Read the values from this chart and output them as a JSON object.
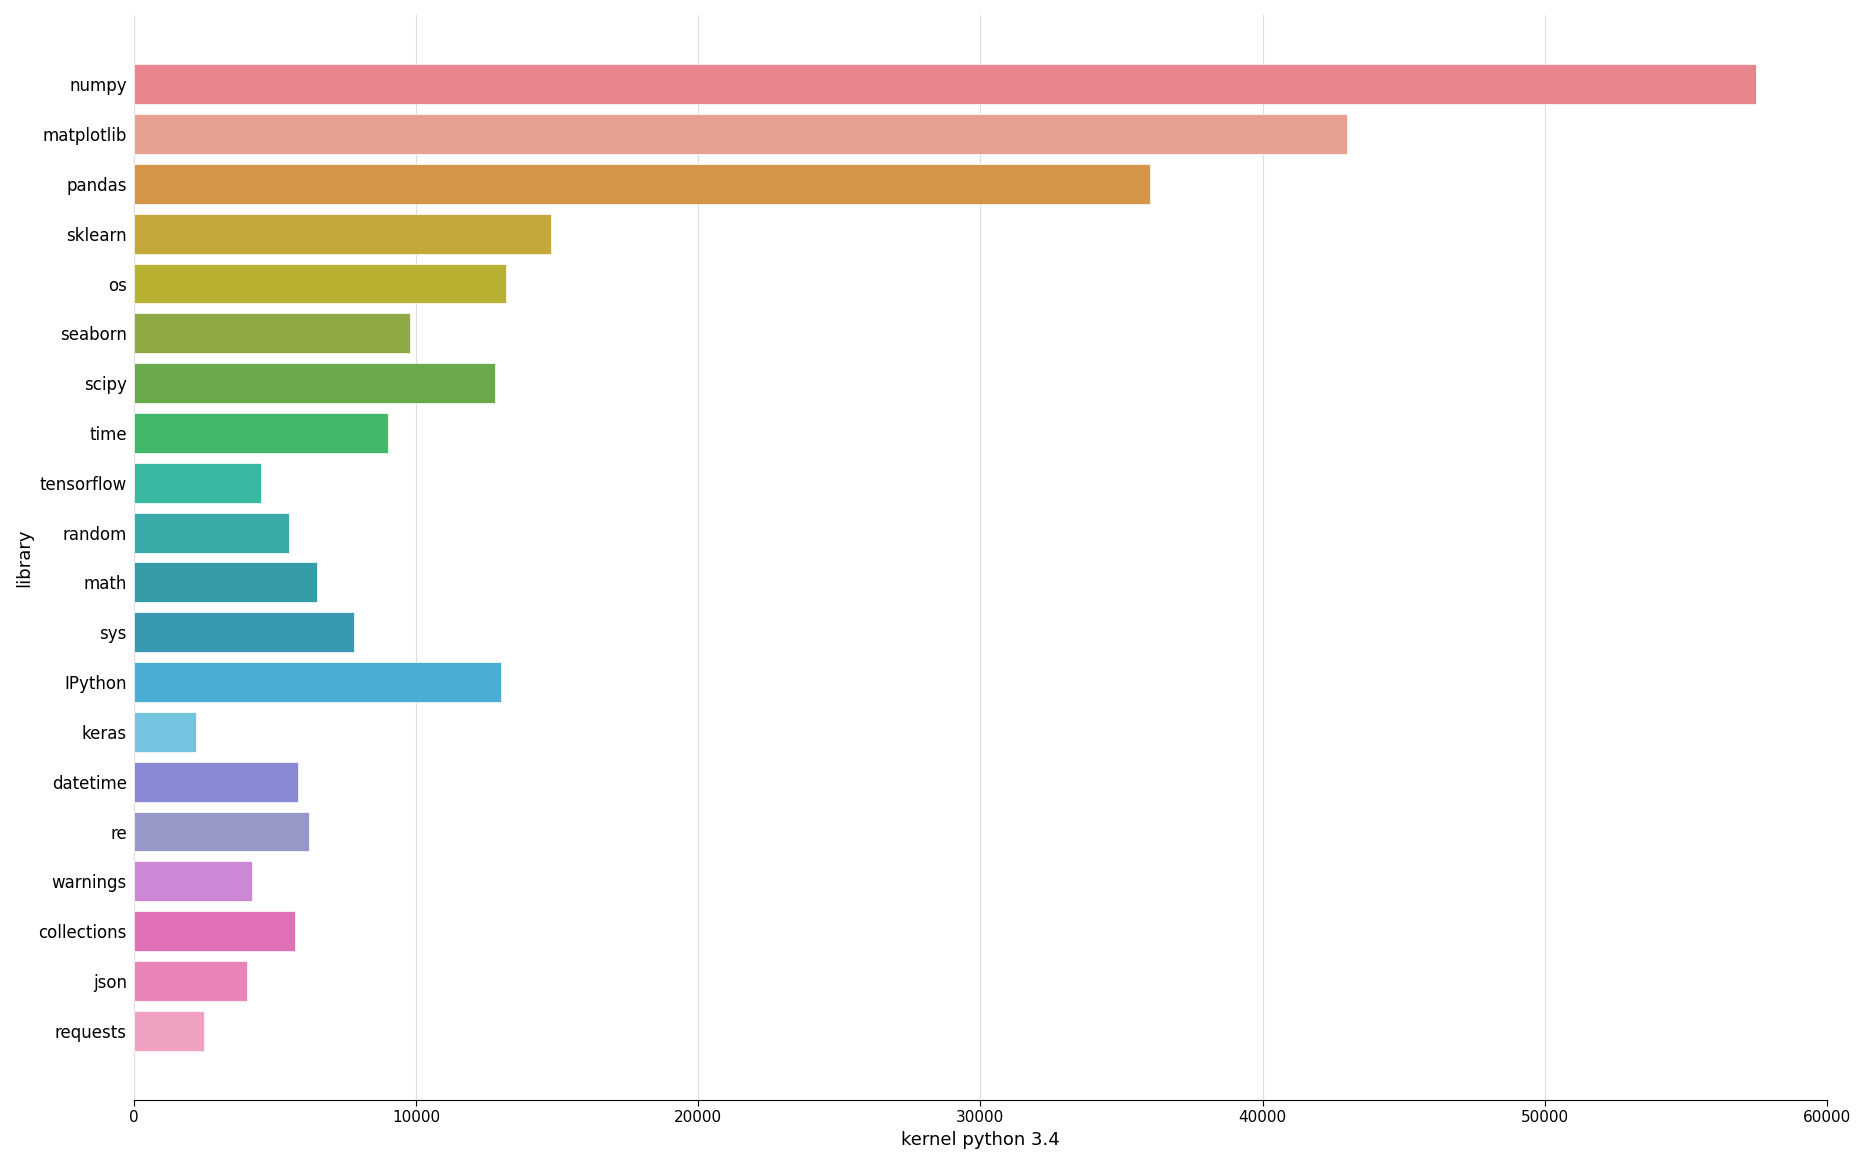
{
  "libraries": [
    "requests",
    "json",
    "collections",
    "warnings",
    "re",
    "datetime",
    "keras",
    "IPython",
    "sys",
    "math",
    "random",
    "tensorflow",
    "time",
    "scipy",
    "seaborn",
    "os",
    "sklearn",
    "pandas",
    "matplotlib",
    "numpy"
  ],
  "values": [
    2500,
    4000,
    5700,
    4200,
    6200,
    5800,
    2200,
    13000,
    7800,
    6500,
    5500,
    4500,
    9000,
    12800,
    9800,
    13200,
    14800,
    36000,
    43000,
    57500
  ],
  "colors": [
    "#f0a0c0",
    "#e884b8",
    "#e070b8",
    "#cc88d4",
    "#9898c8",
    "#8888d4",
    "#74c4e0",
    "#4aaed4",
    "#3898b0",
    "#389ca8",
    "#38aaa8",
    "#38b8a0",
    "#42b86a",
    "#6aaa4c",
    "#8faa44",
    "#b8b030",
    "#c4a83a",
    "#d4954a",
    "#e8a090",
    "#e8848c"
  ],
  "xlabel": "kernel python 3.4",
  "ylabel": "library",
  "xlim": [
    0,
    60000
  ],
  "xticks": [
    0,
    10000,
    20000,
    30000,
    40000,
    50000,
    60000
  ],
  "background_color": "#ffffff",
  "grid_color": "#dddddd"
}
